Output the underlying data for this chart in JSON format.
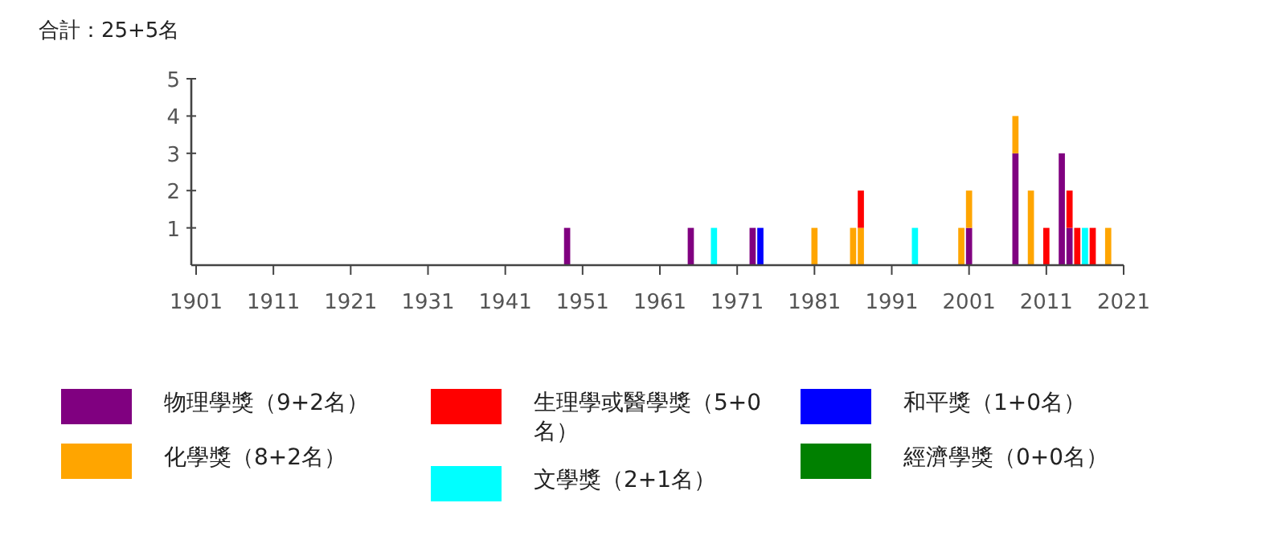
{
  "chart_data": {
    "type": "bar",
    "title": "合計：25+5名",
    "stacked": true,
    "legend": "bottom",
    "grid": false,
    "x": [
      1949,
      1965,
      1968,
      1973,
      1974,
      1981,
      1986,
      1987,
      1994,
      2000,
      2001,
      2007,
      2009,
      2011,
      2013,
      2014,
      2015,
      2016,
      2017,
      2019
    ],
    "xlim": [
      1901,
      2021
    ],
    "xticks": [
      1901,
      1911,
      1921,
      1931,
      1941,
      1951,
      1961,
      1971,
      1981,
      1991,
      2001,
      2011,
      2021
    ],
    "ylim": [
      0,
      5
    ],
    "yticks": [
      1,
      2,
      3,
      4,
      5
    ],
    "series": [
      {
        "name": "物理學獎（9+2名）",
        "color": "#800080",
        "values": [
          1,
          1,
          null,
          1,
          null,
          null,
          null,
          null,
          null,
          null,
          1,
          3,
          null,
          null,
          3,
          1,
          null,
          null,
          null,
          null
        ]
      },
      {
        "name": "化學獎（8+2名）",
        "color": "#ffa500",
        "values": [
          null,
          null,
          null,
          null,
          null,
          1,
          1,
          1,
          null,
          1,
          1,
          1,
          2,
          null,
          null,
          null,
          null,
          null,
          null,
          1
        ]
      },
      {
        "name": "生理學或醫學獎（5+0名）",
        "color": "#ff0000",
        "values": [
          null,
          null,
          null,
          null,
          null,
          null,
          null,
          1,
          null,
          null,
          null,
          null,
          null,
          1,
          null,
          1,
          1,
          null,
          1,
          null
        ]
      },
      {
        "name": "文學獎（2+1名）",
        "color": "#00ffff",
        "values": [
          null,
          null,
          1,
          null,
          null,
          null,
          null,
          null,
          1,
          null,
          null,
          null,
          null,
          null,
          null,
          null,
          null,
          1,
          null,
          null
        ]
      },
      {
        "name": "和平獎（1+0名）",
        "color": "#0000ff",
        "values": [
          null,
          null,
          null,
          null,
          1,
          null,
          null,
          null,
          null,
          null,
          null,
          null,
          null,
          null,
          null,
          null,
          null,
          null,
          null,
          null
        ]
      },
      {
        "name": "經濟學獎（0+0名）",
        "color": "#008000",
        "values": [
          null,
          null,
          null,
          null,
          null,
          null,
          null,
          null,
          null,
          null,
          null,
          null,
          null,
          null,
          null,
          null,
          null,
          null,
          null,
          null
        ]
      }
    ]
  }
}
